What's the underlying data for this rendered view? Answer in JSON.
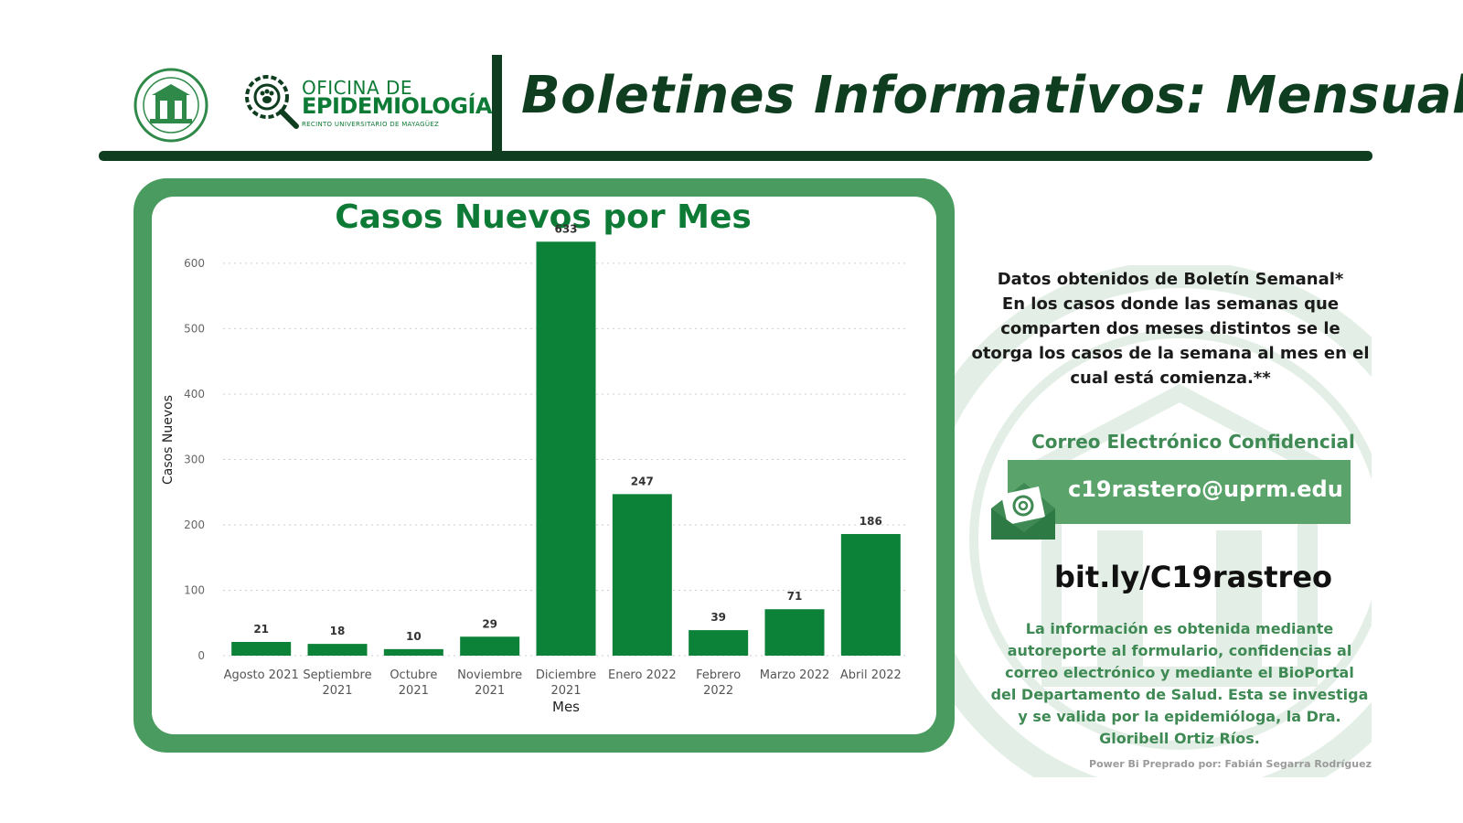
{
  "header": {
    "title": "Boletines Informativos:  Mensual",
    "logo": {
      "line1": "OFICINA DE",
      "line2": "EPIDEMIOLOGÍA",
      "line3": "RECINTO UNIVERSITARIO DE MAYAGÜEZ"
    },
    "seal_icon": "university-seal-icon"
  },
  "colors": {
    "dark_green": "#0f3d1f",
    "bar_green": "#0b8237",
    "frame_green": "#4a9b5f",
    "title_green": "#0d7a35",
    "accent_green": "#3f8a54"
  },
  "chart_data": {
    "type": "bar",
    "title": "Casos Nuevos por Mes",
    "xlabel": "Mes",
    "ylabel": "Casos Nuevos",
    "categories": [
      [
        "Agosto 2021"
      ],
      [
        "Septiembre",
        "2021"
      ],
      [
        "Octubre",
        "2021"
      ],
      [
        "Noviembre",
        "2021"
      ],
      [
        "Diciembre",
        "2021"
      ],
      [
        "Enero 2022"
      ],
      [
        "Febrero",
        "2022"
      ],
      [
        "Marzo 2022"
      ],
      [
        "Abril 2022"
      ]
    ],
    "values": [
      21,
      18,
      10,
      29,
      633,
      247,
      39,
      71,
      186
    ],
    "yticks": [
      0,
      100,
      200,
      300,
      400,
      500,
      600
    ],
    "ylim": [
      0,
      660
    ],
    "grid": true,
    "data_labels": true
  },
  "sidebar": {
    "notes": [
      "Datos obtenidos de Boletín Semanal*",
      "En los casos donde las semanas que",
      "comparten dos meses distintos se le",
      "otorga los casos de la semana al mes en el",
      "cual está comienza.**"
    ],
    "email_heading": "Correo Electrónico Confidencial",
    "email": "c19rastero@uprm.edu",
    "email_icon": "envelope-at-icon",
    "short_link": "bit.ly/C19rastreo",
    "info": [
      "La información es obtenida mediante",
      "autoreporte al formulario, confidencias al",
      "correo electrónico y mediante el BioPortal",
      "del Departamento de Salud. Esta se investiga",
      "y se valida por la epidemióloga, la Dra.",
      "Gloribell Ortiz Ríos."
    ],
    "credit": "Power Bi Preprado por: Fabián Segarra Rodríguez"
  }
}
